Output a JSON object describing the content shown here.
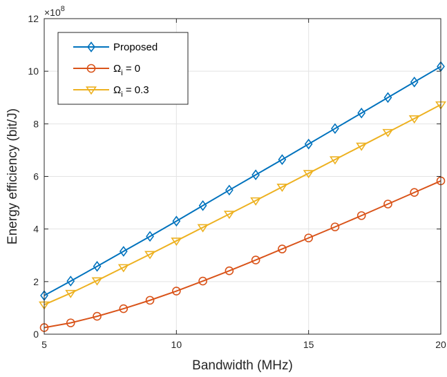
{
  "chart_data": {
    "type": "line",
    "title": "",
    "xlabel": "Bandwidth (MHz)",
    "ylabel": "Energy efficiency (bit/J)",
    "y_multiplier": "×10",
    "y_exponent": "8",
    "xlim": [
      5,
      20
    ],
    "ylim": [
      0,
      12
    ],
    "x_ticks": [
      5,
      10,
      15,
      20
    ],
    "y_ticks": [
      0,
      2,
      4,
      6,
      8,
      10,
      12
    ],
    "grid": true,
    "legend_position": "top-left",
    "x": [
      5,
      6,
      7,
      8,
      9,
      10,
      11,
      12,
      13,
      14,
      15,
      16,
      17,
      18,
      19,
      20
    ],
    "series": [
      {
        "name": "Proposed",
        "legend_parts": [
          "Proposed"
        ],
        "color": "#0072BD",
        "marker": "diamond",
        "values": [
          1.47,
          2.02,
          2.58,
          3.15,
          3.72,
          4.3,
          4.89,
          5.48,
          6.06,
          6.64,
          7.23,
          7.82,
          8.41,
          9.0,
          9.59,
          10.18
        ]
      },
      {
        "name": "Ωi = 0",
        "legend_parts": [
          "Ω",
          "i",
          " = 0"
        ],
        "color": "#D95319",
        "marker": "circle",
        "values": [
          0.25,
          0.43,
          0.68,
          0.97,
          1.29,
          1.64,
          2.02,
          2.41,
          2.82,
          3.24,
          3.66,
          4.08,
          4.51,
          4.95,
          5.39,
          5.83
        ]
      },
      {
        "name": "Ωi = 0.3",
        "legend_parts": [
          "Ω",
          "i",
          " = 0.3"
        ],
        "color": "#EDB120",
        "marker": "triangle-down",
        "values": [
          1.12,
          1.56,
          2.04,
          2.54,
          3.04,
          3.55,
          4.06,
          4.57,
          5.08,
          5.6,
          6.12,
          6.64,
          7.16,
          7.68,
          8.2,
          8.73
        ]
      }
    ]
  }
}
